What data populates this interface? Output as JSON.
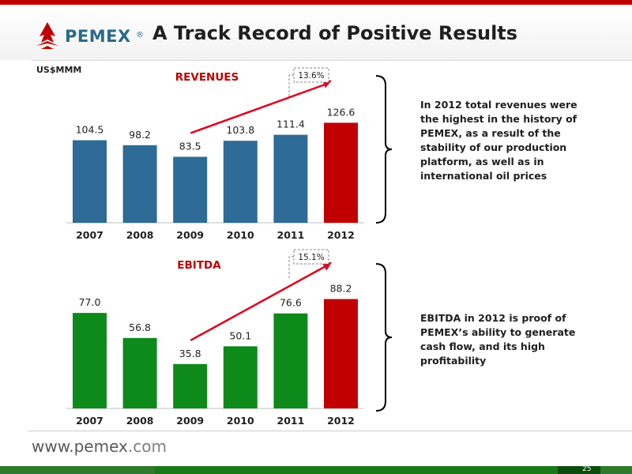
{
  "header": {
    "logo_text": "PEMEX",
    "logo_reg": "®",
    "title": "A Track Record of Positive Results",
    "unit": "US$MMM"
  },
  "colors": {
    "revenue_bar": "#2e6b96",
    "ebitda_bar": "#0e8a1a",
    "highlight_bar": "#c00000",
    "arrow": "#e0001b",
    "brand_red": "#c00000"
  },
  "chart_data": [
    {
      "type": "bar",
      "title": "REVENUES",
      "categories": [
        "2007",
        "2008",
        "2009",
        "2010",
        "2011",
        "2012"
      ],
      "values": [
        104.5,
        98.2,
        83.5,
        103.8,
        111.4,
        126.6
      ],
      "value_labels": [
        "104.5",
        "98.2",
        "83.5",
        "103.8",
        "111.4",
        "126.6"
      ],
      "growth_label": "13.6%",
      "growth_arrow_from": "2009",
      "growth_arrow_to": "2012",
      "highlight_category": "2012",
      "grid": false,
      "ylim": [
        0,
        140
      ]
    },
    {
      "type": "bar",
      "title": "EBITDA",
      "categories": [
        "2007",
        "2008",
        "2009",
        "2010",
        "2011",
        "2012"
      ],
      "values": [
        77.0,
        56.8,
        35.8,
        50.1,
        76.6,
        88.2
      ],
      "value_labels": [
        "77.0",
        "56.8",
        "35.8",
        "50.1",
        "76.6",
        "88.2"
      ],
      "growth_label": "15.1%",
      "growth_arrow_from": "2009",
      "growth_arrow_to": "2012",
      "highlight_category": "2012",
      "grid": false,
      "ylim": [
        0,
        100
      ]
    }
  ],
  "commentary": {
    "revenues": "In 2012 total revenues were the highest in the history of PEMEX, as a result of the stability of our production platform, as well as in international oil prices",
    "ebitda": "EBITDA in 2012 is proof of PEMEX’s ability to generate cash flow, and its high profitability"
  },
  "footer": {
    "url_prefix": "www.",
    "url_brand": "pemex",
    "url_suffix": ".com",
    "page_number": "25"
  }
}
